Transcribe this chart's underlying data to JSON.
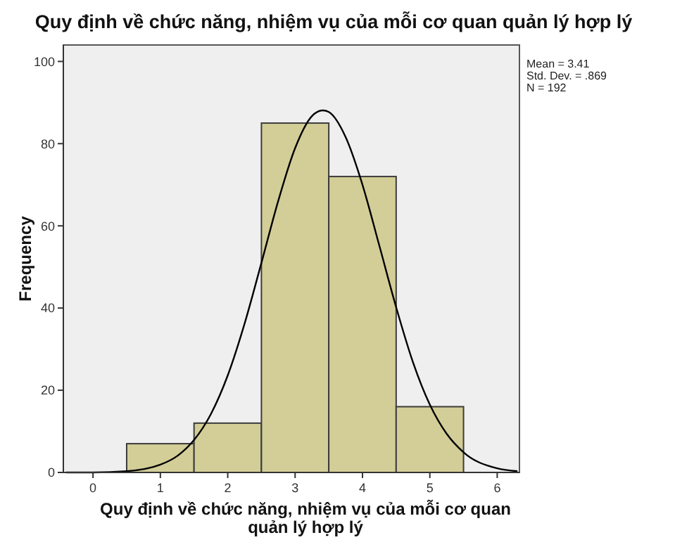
{
  "chart_data": {
    "type": "histogram",
    "title": "Quy định về chức năng, nhiệm vụ của mỗi cơ quan quản lý hợp lý",
    "xlabel": "Quy định về chức năng, nhiệm vụ của mỗi cơ quan quản lý hợp lý",
    "ylabel": "Frequency",
    "bins": [
      0.5,
      1.5,
      2.5,
      3.5,
      4.5,
      5.5
    ],
    "series": [
      {
        "color": "#d3ce98",
        "values": [
          7,
          12,
          85,
          72,
          16
        ]
      },
      {
        "type": "line",
        "color": "#000000",
        "x": [
          -0.4,
          0,
          0.5,
          1,
          1.25,
          1.5,
          1.75,
          2,
          2.25,
          2.5,
          2.75,
          3,
          3.25,
          3.41,
          3.5,
          3.75,
          4,
          4.25,
          4.5,
          4.75,
          5,
          5.25,
          5.5,
          6,
          6.3
        ],
        "values": [
          0,
          0,
          0.3,
          1.9,
          4,
          7.9,
          14.2,
          23.6,
          36.2,
          51,
          66.1,
          78.9,
          86.7,
          88.1,
          87.7,
          81.6,
          70,
          55.2,
          40.2,
          26.8,
          16.5,
          9.4,
          4.9,
          1,
          0.3
        ]
      }
    ],
    "xlim": [
      -0.44,
      6.33
    ],
    "xticks": [
      0,
      1,
      2,
      3,
      4,
      5,
      6
    ],
    "ylim": [
      0,
      104
    ],
    "yticks": [
      0,
      20,
      40,
      60,
      80,
      100
    ],
    "grid": false,
    "marker": "none",
    "line_style": "solid",
    "annotations": [
      "Mean = 3.41",
      "Std. Dev. = .869",
      "N = 192"
    ]
  }
}
